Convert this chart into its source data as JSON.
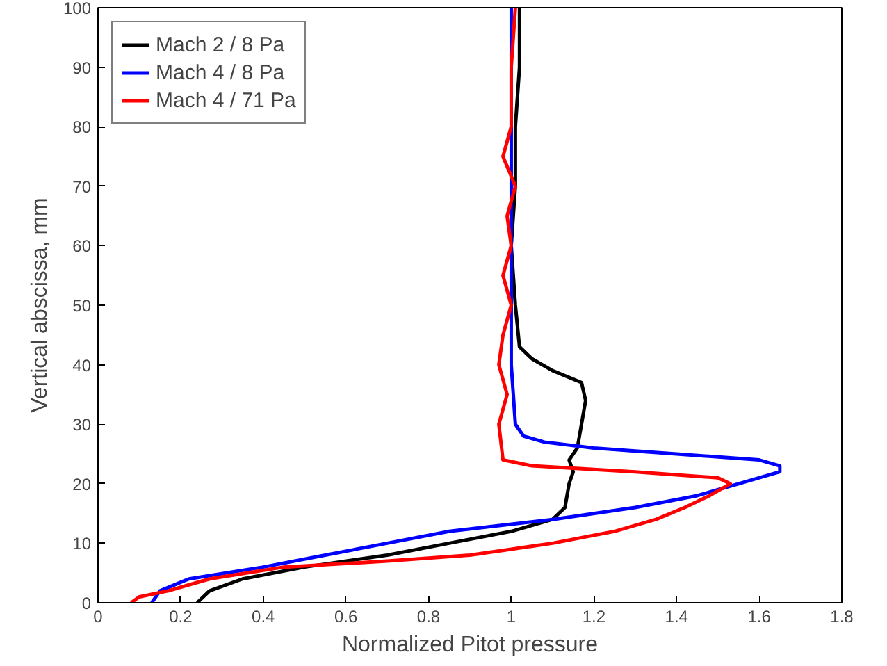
{
  "chart_data": {
    "type": "line",
    "xlabel": "Normalized Pitot pressure",
    "ylabel": "Vertical abscissa, mm",
    "xlim": [
      0,
      1.8
    ],
    "xticks": [
      0,
      0.2,
      0.4,
      0.6,
      0.8,
      1,
      1.2,
      1.4,
      1.6,
      1.8
    ],
    "ylim": [
      0,
      100
    ],
    "yticks": [
      0,
      10,
      20,
      30,
      40,
      50,
      60,
      70,
      80,
      90,
      100
    ],
    "grid": false,
    "legend": "top left",
    "series": [
      {
        "name": "Mach 2 / 8 Pa",
        "color": "#000000",
        "x": [
          0.24,
          0.27,
          0.35,
          0.5,
          0.7,
          0.85,
          1.0,
          1.1,
          1.13,
          1.14,
          1.15,
          1.14,
          1.16,
          1.17,
          1.18,
          1.17,
          1.1,
          1.05,
          1.02,
          1.01,
          1.0,
          1.01,
          1.01,
          1.02,
          1.02
        ],
        "values": [
          0,
          2,
          4,
          6,
          8,
          10,
          12,
          14,
          16,
          20,
          22,
          24,
          26,
          30,
          34,
          37,
          39,
          41,
          43,
          50,
          60,
          70,
          80,
          90,
          100
        ]
      },
      {
        "name": "Mach 4 / 8 Pa",
        "color": "#0000ff",
        "x": [
          0.13,
          0.15,
          0.22,
          0.4,
          0.55,
          0.7,
          0.85,
          1.1,
          1.3,
          1.45,
          1.55,
          1.65,
          1.65,
          1.6,
          1.4,
          1.2,
          1.08,
          1.03,
          1.01,
          1.0,
          1.0,
          1.0,
          1.0,
          1.0,
          1.0,
          1.0,
          1.0
        ],
        "values": [
          0,
          2,
          4,
          6,
          8,
          10,
          12,
          14,
          16,
          18,
          20,
          22,
          23,
          24,
          25,
          26,
          27,
          28,
          30,
          40,
          50,
          60,
          70,
          80,
          90,
          95,
          100
        ]
      },
      {
        "name": "Mach 4 / 71 Pa",
        "color": "#ff0000",
        "x": [
          0.08,
          0.1,
          0.17,
          0.27,
          0.45,
          0.7,
          0.9,
          1.0,
          1.1,
          1.25,
          1.35,
          1.42,
          1.48,
          1.53,
          1.5,
          1.3,
          1.05,
          0.98,
          0.97,
          0.99,
          0.97,
          0.98,
          1.0,
          0.98,
          1.0,
          0.99,
          1.01,
          0.98,
          1.0,
          1.0,
          1.01
        ],
        "values": [
          0,
          1,
          2,
          4,
          6,
          7,
          8,
          9,
          10,
          12,
          14,
          16,
          18,
          20,
          21,
          22,
          23,
          24,
          30,
          35,
          40,
          45,
          50,
          55,
          60,
          65,
          70,
          75,
          80,
          90,
          100
        ]
      }
    ]
  }
}
